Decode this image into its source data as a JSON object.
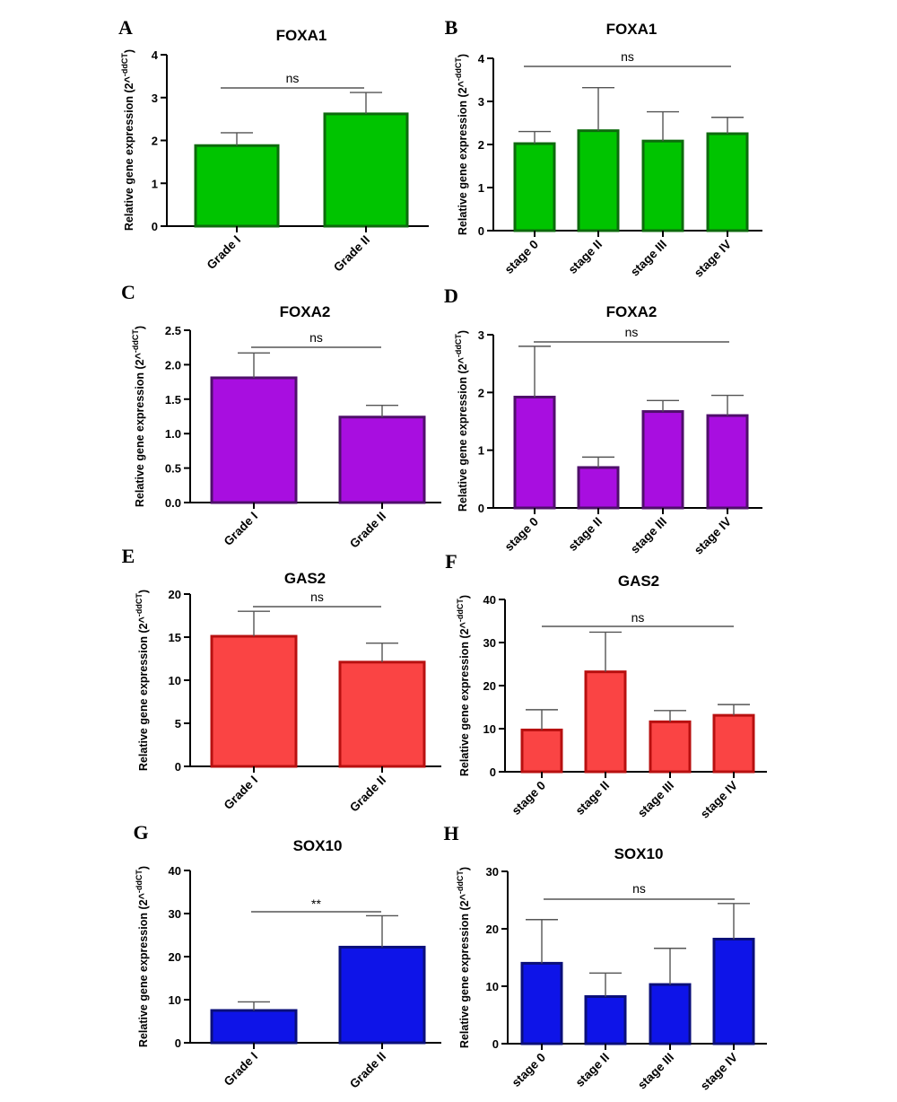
{
  "ylabel_main": "Relative gene expression (2^",
  "ylabel_sup": "-ddCT",
  "ylabel_close": ")",
  "chart_data": [
    {
      "panel": "A",
      "type": "bar",
      "title": "FOXA1",
      "categories": [
        "Grade I",
        "Grade II"
      ],
      "values": [
        1.88,
        2.62
      ],
      "errors": [
        0.3,
        0.5
      ],
      "ylim": [
        0,
        4
      ],
      "yticks": [
        "0",
        "1",
        "2",
        "3",
        "4"
      ],
      "significance": "ns",
      "fill": "#00c400",
      "stroke": "#0d6b0d"
    },
    {
      "panel": "B",
      "type": "bar",
      "title": "FOXA1",
      "categories": [
        "stage 0",
        "stage II",
        "stage III",
        "stage IV"
      ],
      "values": [
        2.02,
        2.32,
        2.08,
        2.25
      ],
      "errors": [
        0.28,
        1.0,
        0.68,
        0.38
      ],
      "ylim": [
        0,
        4
      ],
      "yticks": [
        "0",
        "1",
        "2",
        "3",
        "4"
      ],
      "significance": "ns",
      "fill": "#00c400",
      "stroke": "#0d6b0d"
    },
    {
      "panel": "C",
      "type": "bar",
      "title": "FOXA2",
      "categories": [
        "Grade I",
        "Grade II"
      ],
      "values": [
        1.81,
        1.24
      ],
      "errors": [
        0.36,
        0.17
      ],
      "ylim": [
        0,
        2.5
      ],
      "yticks": [
        "0.0",
        "0.5",
        "1.0",
        "1.5",
        "2.0",
        "2.5"
      ],
      "significance": "ns",
      "fill": "#a80ee0",
      "stroke": "#4f0f6b"
    },
    {
      "panel": "D",
      "type": "bar",
      "title": "FOXA2",
      "categories": [
        "stage 0",
        "stage II",
        "stage III",
        "stage IV"
      ],
      "values": [
        1.92,
        0.7,
        1.67,
        1.6
      ],
      "errors": [
        0.88,
        0.18,
        0.19,
        0.35
      ],
      "ylim": [
        0,
        3
      ],
      "yticks": [
        "0",
        "1",
        "2",
        "3"
      ],
      "significance": "ns",
      "fill": "#a80ee0",
      "stroke": "#4f0f6b"
    },
    {
      "panel": "E",
      "type": "bar",
      "title": "GAS2",
      "categories": [
        "Grade I",
        "Grade II"
      ],
      "values": [
        15.1,
        12.1
      ],
      "errors": [
        2.9,
        2.2
      ],
      "ylim": [
        0,
        20
      ],
      "yticks": [
        "0",
        "5",
        "10",
        "15",
        "20"
      ],
      "significance": "ns",
      "fill": "#fa4444",
      "stroke": "#b81010"
    },
    {
      "panel": "F",
      "type": "bar",
      "title": "GAS2",
      "categories": [
        "stage 0",
        "stage II",
        "stage III",
        "stage IV"
      ],
      "values": [
        9.7,
        23.2,
        11.6,
        13.1
      ],
      "errors": [
        4.7,
        9.2,
        2.6,
        2.5
      ],
      "ylim": [
        0,
        40
      ],
      "yticks": [
        "0",
        "10",
        "20",
        "30",
        "40"
      ],
      "significance": "ns",
      "fill": "#fa4444",
      "stroke": "#b81010"
    },
    {
      "panel": "G",
      "type": "bar",
      "title": "SOX10",
      "categories": [
        "Grade I",
        "Grade II"
      ],
      "values": [
        7.5,
        22.2
      ],
      "errors": [
        2.0,
        7.3
      ],
      "ylim": [
        0,
        40
      ],
      "yticks": [
        "0",
        "10",
        "20",
        "30",
        "40"
      ],
      "significance": "**",
      "fill": "#0e14e8",
      "stroke": "#0a0f7a"
    },
    {
      "panel": "H",
      "type": "bar",
      "title": "SOX10",
      "categories": [
        "stage 0",
        "stage II",
        "stage III",
        "stage IV"
      ],
      "values": [
        14.0,
        8.2,
        10.3,
        18.2
      ],
      "errors": [
        7.6,
        4.1,
        6.3,
        6.2
      ],
      "ylim": [
        0,
        30
      ],
      "yticks": [
        "0",
        "10",
        "20",
        "30"
      ],
      "significance": "ns",
      "fill": "#0e14e8",
      "stroke": "#0a0f7a"
    }
  ]
}
